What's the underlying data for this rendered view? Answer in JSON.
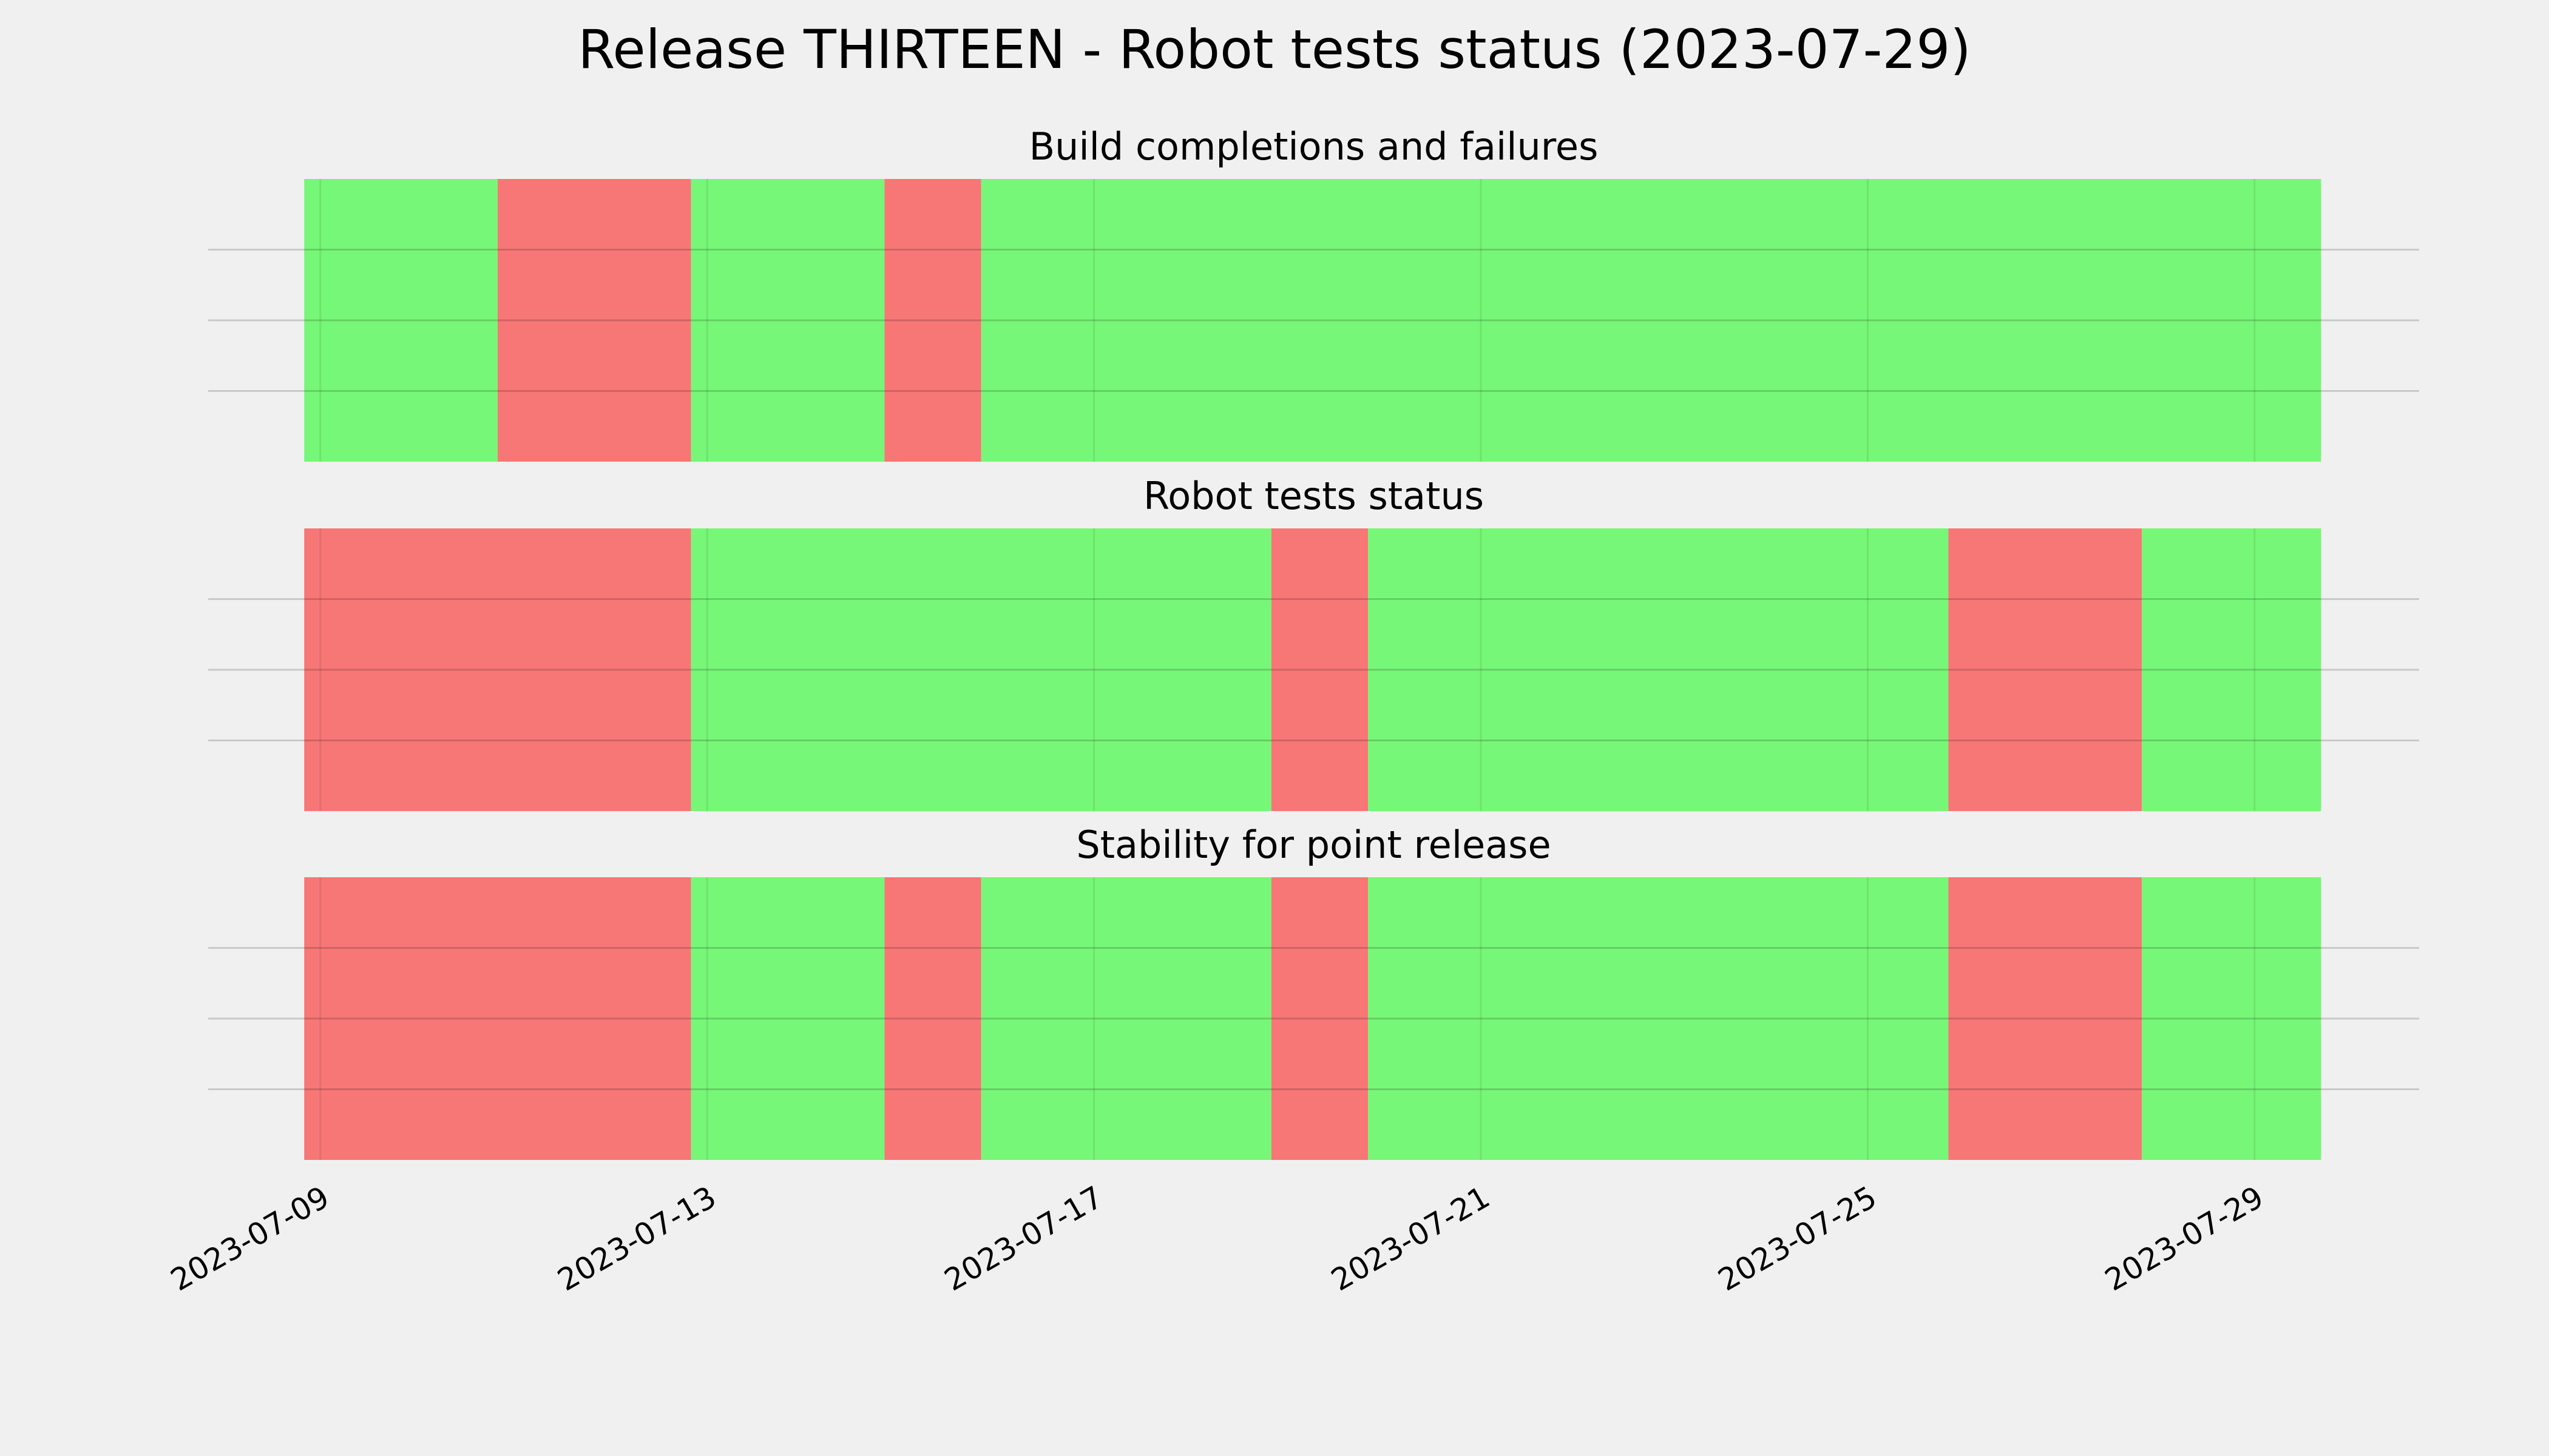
{
  "title": "Release THIRTEEN - Robot tests status (2023-07-29)",
  "chart_data": [
    {
      "type": "span",
      "title": "Build completions and failures",
      "xlim": [
        "2023-07-07T20:10",
        "2023-07-30T16:50"
      ],
      "ylim": [
        0,
        1
      ],
      "yticks": [
        0.25,
        0.5,
        0.75
      ],
      "grid": true,
      "xticks": [
        "2023-07-09",
        "2023-07-13",
        "2023-07-17",
        "2023-07-21",
        "2023-07-25",
        "2023-07-29"
      ],
      "show_xtick_labels": false,
      "spans": [
        {
          "start": "2023-07-08T20:00",
          "end": "2023-07-10T20:00",
          "color": "#77f777"
        },
        {
          "start": "2023-07-10T20:00",
          "end": "2023-07-12T20:00",
          "color": "#f77777"
        },
        {
          "start": "2023-07-12T20:00",
          "end": "2023-07-14T20:00",
          "color": "#77f777"
        },
        {
          "start": "2023-07-14T20:00",
          "end": "2023-07-15T20:00",
          "color": "#f77777"
        },
        {
          "start": "2023-07-15T20:00",
          "end": "2023-07-29T16:30",
          "color": "#77f777"
        }
      ]
    },
    {
      "type": "span",
      "title": "Robot tests status",
      "xlim": [
        "2023-07-07T20:10",
        "2023-07-30T16:50"
      ],
      "ylim": [
        0,
        1
      ],
      "yticks": [
        0.25,
        0.5,
        0.75
      ],
      "grid": true,
      "xticks": [
        "2023-07-09",
        "2023-07-13",
        "2023-07-17",
        "2023-07-21",
        "2023-07-25",
        "2023-07-29"
      ],
      "show_xtick_labels": false,
      "spans": [
        {
          "start": "2023-07-08T20:00",
          "end": "2023-07-12T20:00",
          "color": "#f77777"
        },
        {
          "start": "2023-07-12T20:00",
          "end": "2023-07-18T20:00",
          "color": "#77f777"
        },
        {
          "start": "2023-07-18T20:00",
          "end": "2023-07-19T20:00",
          "color": "#f77777"
        },
        {
          "start": "2023-07-19T20:00",
          "end": "2023-07-25T20:00",
          "color": "#77f777"
        },
        {
          "start": "2023-07-25T20:00",
          "end": "2023-07-27T20:00",
          "color": "#f77777"
        },
        {
          "start": "2023-07-27T20:00",
          "end": "2023-07-29T16:30",
          "color": "#77f777"
        }
      ]
    },
    {
      "type": "span",
      "title": "Stability for point release",
      "xlim": [
        "2023-07-07T20:10",
        "2023-07-30T16:50"
      ],
      "ylim": [
        0,
        1
      ],
      "yticks": [
        0.25,
        0.5,
        0.75
      ],
      "grid": true,
      "xticks": [
        "2023-07-09",
        "2023-07-13",
        "2023-07-17",
        "2023-07-21",
        "2023-07-25",
        "2023-07-29"
      ],
      "show_xtick_labels": true,
      "spans": [
        {
          "start": "2023-07-08T20:00",
          "end": "2023-07-12T20:00",
          "color": "#f77777"
        },
        {
          "start": "2023-07-12T20:00",
          "end": "2023-07-14T20:00",
          "color": "#77f777"
        },
        {
          "start": "2023-07-14T20:00",
          "end": "2023-07-15T20:00",
          "color": "#f77777"
        },
        {
          "start": "2023-07-15T20:00",
          "end": "2023-07-18T20:00",
          "color": "#77f777"
        },
        {
          "start": "2023-07-18T20:00",
          "end": "2023-07-19T20:00",
          "color": "#f77777"
        },
        {
          "start": "2023-07-19T20:00",
          "end": "2023-07-25T20:00",
          "color": "#77f777"
        },
        {
          "start": "2023-07-25T20:00",
          "end": "2023-07-27T20:00",
          "color": "#f77777"
        },
        {
          "start": "2023-07-27T20:00",
          "end": "2023-07-29T16:30",
          "color": "#77f777"
        }
      ]
    }
  ]
}
